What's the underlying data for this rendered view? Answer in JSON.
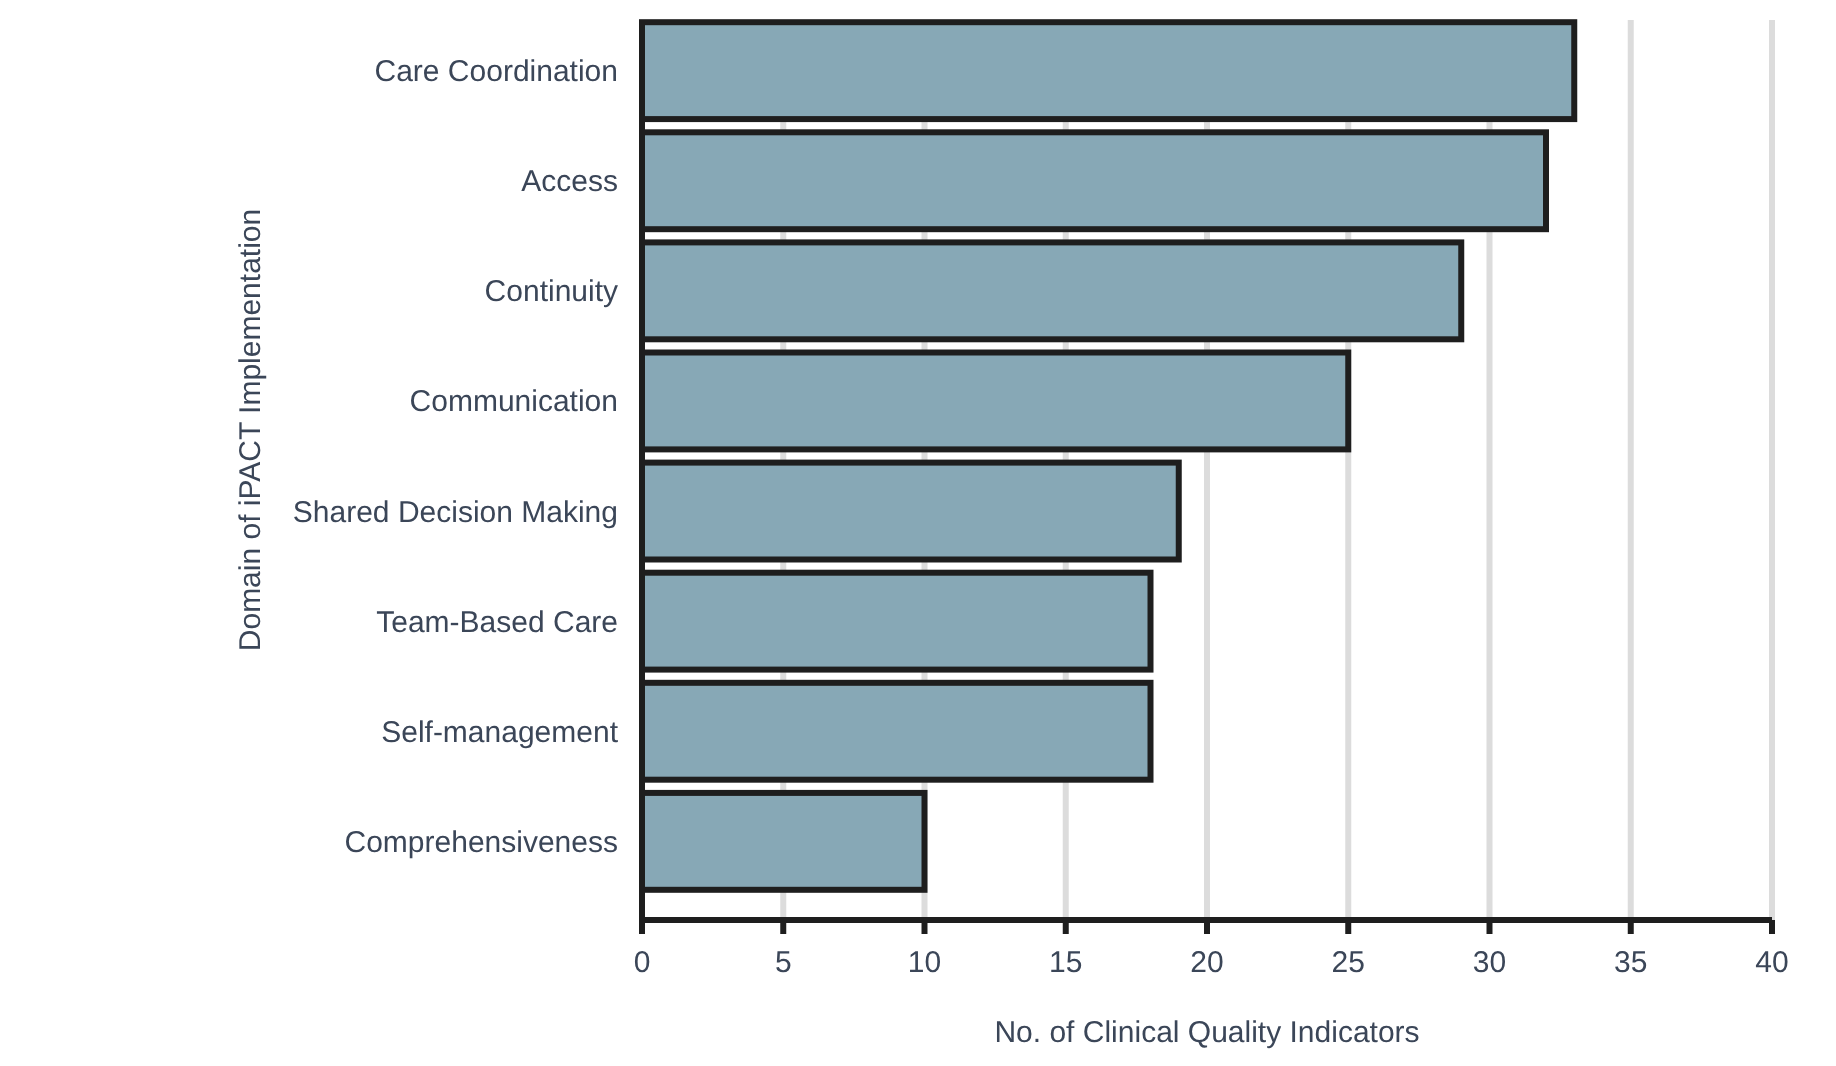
{
  "chart_data": {
    "type": "bar",
    "orientation": "horizontal",
    "xlabel": "No. of Clinical Quality Indicators",
    "ylabel": "Domain of iPACT Implementation",
    "categories": [
      "Care Coordination",
      "Access",
      "Continuity",
      "Communication",
      "Shared Decision Making",
      "Team-Based Care",
      "Self-management",
      "Comprehensiveness"
    ],
    "values": [
      33,
      32,
      29,
      25,
      19,
      18,
      18,
      10
    ],
    "color": "#87a8b6",
    "xlim": [
      0,
      40
    ],
    "xticks": [
      0,
      5,
      10,
      15,
      20,
      25,
      30,
      35,
      40
    ],
    "grid": "x"
  }
}
